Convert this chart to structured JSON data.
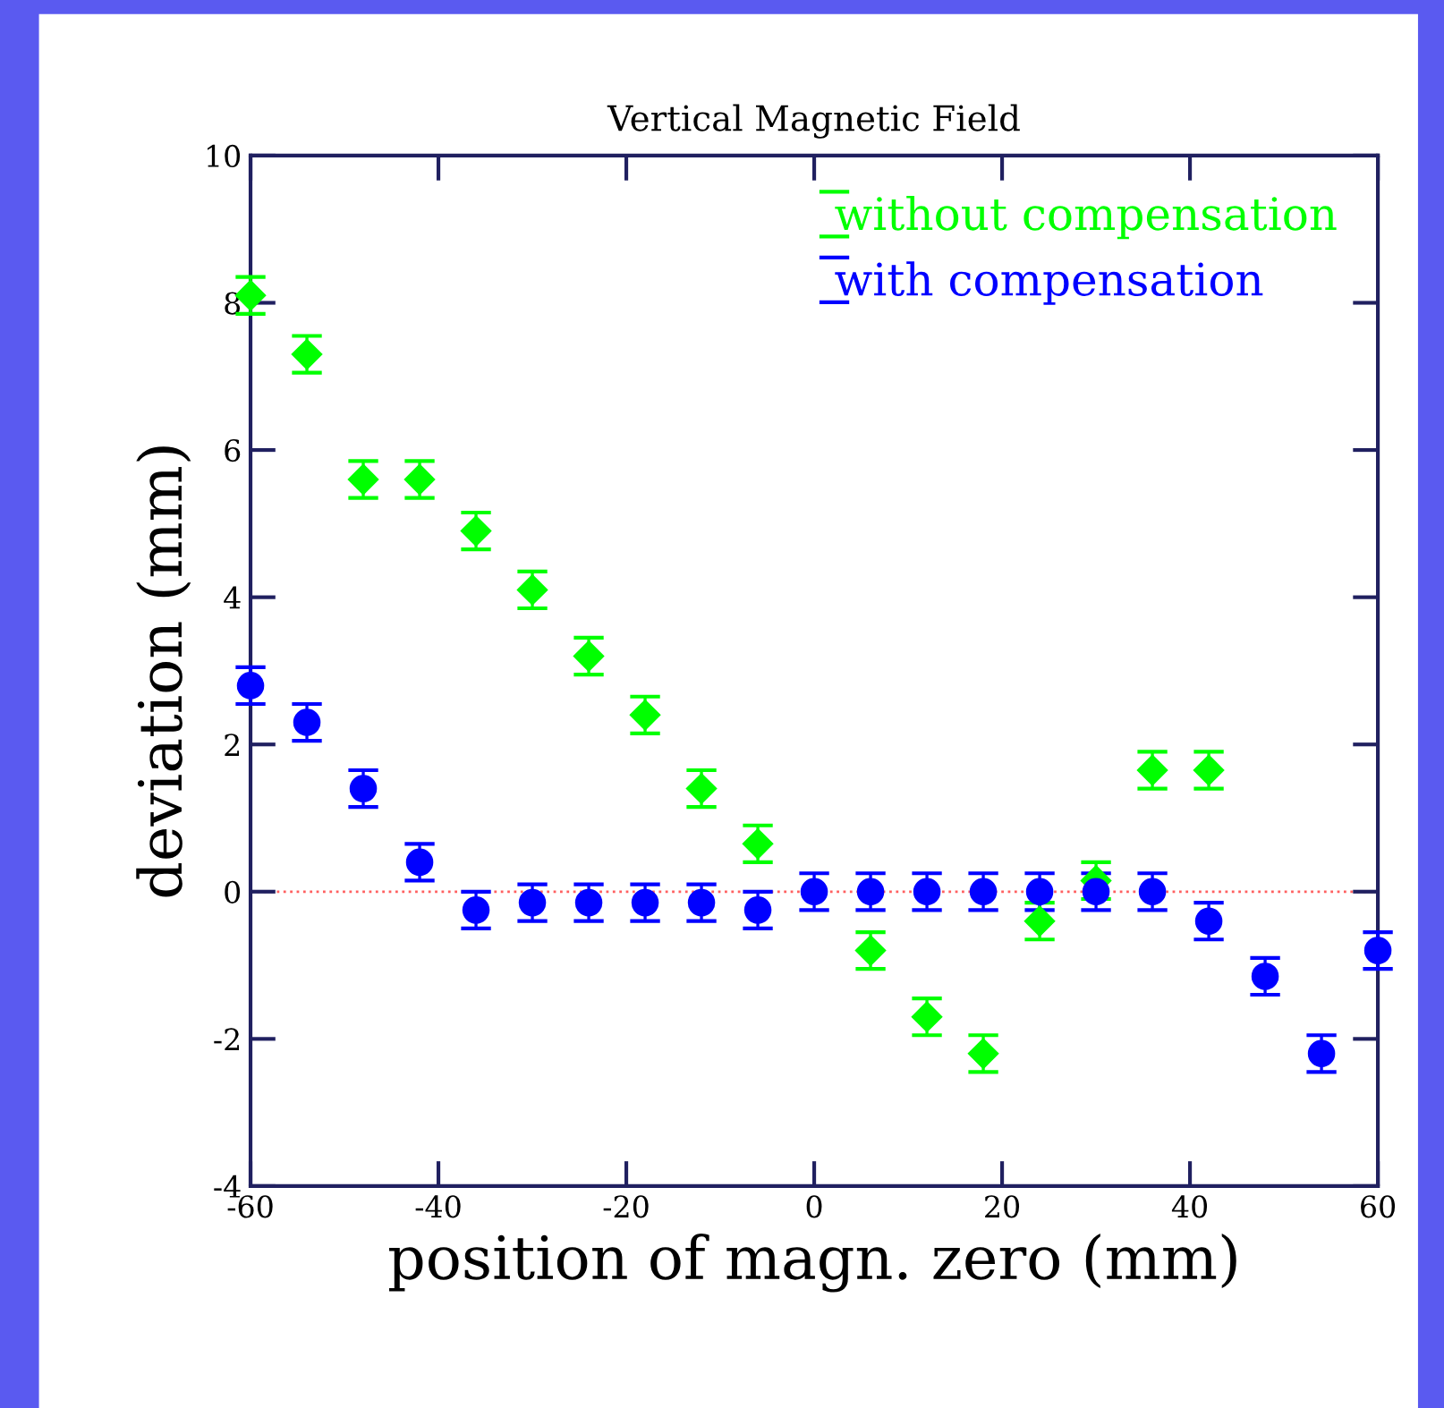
{
  "chart_data": {
    "type": "scatter",
    "title": "Vertical Magnetic Field",
    "xlabel": "position of magn. zero (mm)",
    "ylabel": "deviation (mm)",
    "x": [
      -60,
      -54,
      -48,
      -42,
      -36,
      -30,
      -24,
      -18,
      -12,
      -6,
      0,
      6,
      12,
      18,
      24,
      30,
      36,
      42,
      48,
      54,
      60
    ],
    "series": [
      {
        "name": "without compensation",
        "color": "#00ff00",
        "marker": "diamond",
        "values": [
          8.1,
          7.3,
          5.6,
          5.6,
          4.9,
          4.1,
          3.2,
          2.4,
          1.4,
          0.65,
          null,
          -0.8,
          -1.7,
          -2.2,
          -0.4,
          0.15,
          1.65,
          1.65,
          null,
          null,
          null
        ],
        "errors": [
          0.25,
          0.25,
          0.25,
          0.25,
          0.25,
          0.25,
          0.25,
          0.25,
          0.25,
          0.25,
          null,
          0.25,
          0.25,
          0.25,
          0.25,
          0.25,
          0.25,
          0.25,
          null,
          null,
          null
        ]
      },
      {
        "name": "with compensation",
        "color": "#0000ff",
        "marker": "circle",
        "values": [
          2.8,
          2.3,
          1.4,
          0.4,
          -0.25,
          -0.15,
          -0.15,
          -0.15,
          -0.15,
          -0.25,
          0.0,
          0.0,
          0.0,
          0.0,
          0.0,
          0.0,
          0.0,
          -0.4,
          -1.15,
          -2.2,
          -0.8
        ],
        "errors": [
          0.25,
          0.25,
          0.25,
          0.25,
          0.25,
          0.25,
          0.25,
          0.25,
          0.25,
          0.25,
          0.25,
          0.25,
          0.25,
          0.25,
          0.25,
          0.25,
          0.25,
          0.25,
          0.25,
          0.25,
          0.25
        ]
      }
    ],
    "xlim": [
      -60,
      60
    ],
    "xticks": [
      -60,
      -40,
      -20,
      0,
      20,
      40,
      60
    ],
    "ylim": [
      -4,
      10
    ],
    "yticks": [
      -4,
      -2,
      0,
      2,
      4,
      6,
      8,
      10
    ],
    "ref_lines": [
      {
        "axis": "y",
        "value": 0,
        "color": "#ff6060",
        "line_style": "dotted"
      }
    ],
    "grid": false,
    "legend": "top right"
  }
}
